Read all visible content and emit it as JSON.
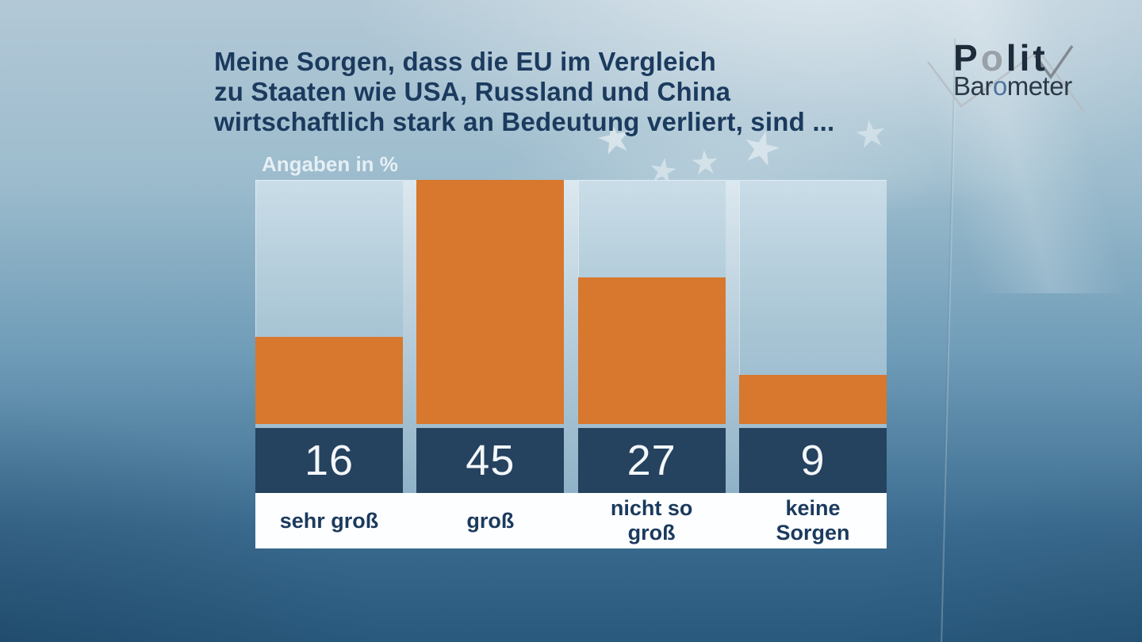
{
  "header": {
    "title_lines": [
      "Meine Sorgen, dass die EU im Vergleich",
      "zu Staaten wie USA, Russland und China",
      "wirtschaftlich stark an Bedeutung verliert, sind ..."
    ],
    "unit_label": "Angaben in %"
  },
  "logo": {
    "line1": {
      "pre": "P",
      "accent": "o",
      "post": "lit"
    },
    "line2": {
      "pre": "Bar",
      "accent": "o",
      "post": "meter"
    }
  },
  "chart_data": {
    "type": "bar",
    "title": "Meine Sorgen, dass die EU im Vergleich zu Staaten wie USA, Russland und China wirtschaftlich stark an Bedeutung verliert, sind ...",
    "unit_label": "Angaben in %",
    "categories": [
      "sehr groß",
      "groß",
      "nicht so groß",
      "keine Sorgen"
    ],
    "category_lines": [
      [
        "sehr groß"
      ],
      [
        "groß"
      ],
      [
        "nicht so",
        "groß"
      ],
      [
        "keine",
        "Sorgen"
      ]
    ],
    "values": [
      16,
      45,
      27,
      9
    ],
    "ylim": [
      0,
      45
    ],
    "grid": false,
    "legend": "none",
    "colors": {
      "bar": "#d7782e",
      "value_box": "#25425f",
      "value_text": "#f3f7fa",
      "label_text": "#1b3a5e",
      "label_strip": "#fdfeff"
    }
  }
}
